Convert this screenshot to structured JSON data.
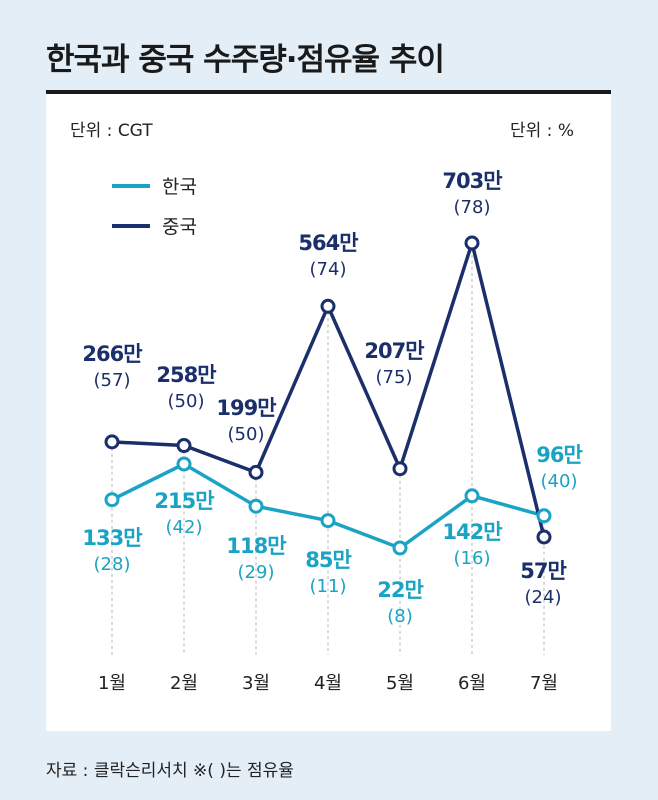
{
  "title": "한국과 중국 수주량·점유율 추이",
  "unit_left": "단위 : CGT",
  "unit_right": "단위 : %",
  "source": "자료 : 클락슨리서치  ※( )는 점유율",
  "colors": {
    "korea": "#1aa3c4",
    "china": "#1b2f6b"
  },
  "chart_data": {
    "type": "line",
    "categories": [
      "1월",
      "2월",
      "3월",
      "4월",
      "5월",
      "6월",
      "7월"
    ],
    "series": [
      {
        "name": "한국",
        "values": [
          133,
          215,
          118,
          85,
          22,
          142,
          96
        ],
        "value_labels": [
          "133만",
          "215만",
          "118만",
          "85만",
          "22만",
          "142만",
          "96만"
        ],
        "share_labels": [
          "(28)",
          "(42)",
          "(29)",
          "(11)",
          "(8)",
          "(16)",
          "(40)"
        ]
      },
      {
        "name": "중국",
        "values": [
          266,
          258,
          199,
          564,
          207,
          703,
          57
        ],
        "value_labels": [
          "266만",
          "258만",
          "199만",
          "564만",
          "207만",
          "703만",
          "57만"
        ],
        "share_labels": [
          "(57)",
          "(50)",
          "(50)",
          "(74)",
          "(75)",
          "(78)",
          "(24)"
        ]
      }
    ],
    "grid": false,
    "legend": "top-left"
  }
}
